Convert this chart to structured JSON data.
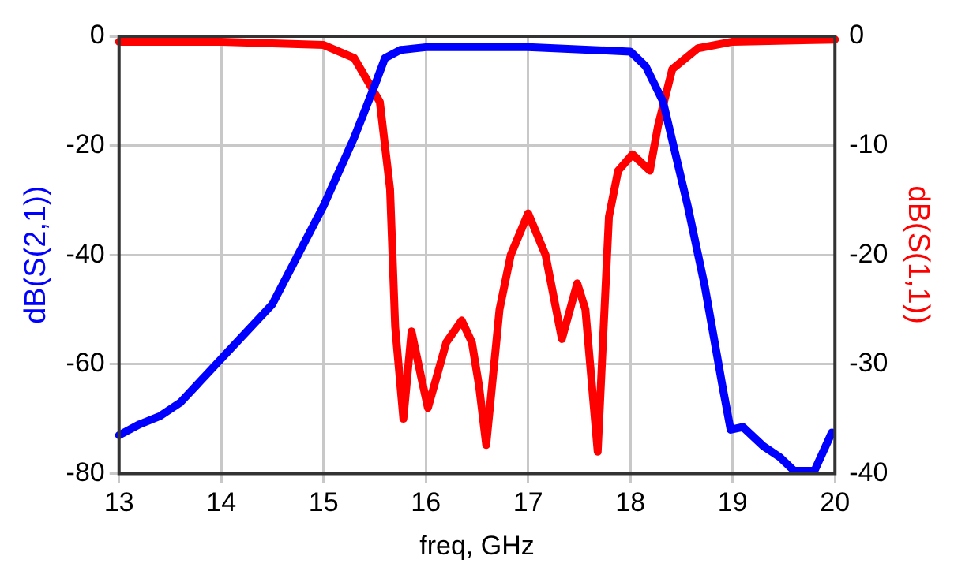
{
  "chart_data": {
    "type": "line",
    "xlabel": "freq, GHz",
    "ylabel": "dB(S(2,1))",
    "y2label": "dB(S(1,1))",
    "xlim": [
      13,
      20
    ],
    "xticks": [
      13,
      14,
      15,
      16,
      17,
      18,
      19,
      20
    ],
    "ylim": [
      -80,
      0
    ],
    "yticks": [
      -80,
      -60,
      -40,
      -20,
      0
    ],
    "y2lim": [
      -40,
      0
    ],
    "y2ticks": [
      -40,
      -30,
      -20,
      -10,
      0
    ],
    "grid": true,
    "legend": false,
    "marker": "none",
    "line_style": "solid",
    "series": [
      {
        "color": "#0000ff",
        "axis": "y",
        "x": [
          13,
          13.2,
          13.4,
          13.6,
          14,
          14.5,
          15,
          15.3,
          15.5,
          15.6,
          15.75,
          16,
          17,
          18,
          18.15,
          18.32,
          18.56,
          18.73,
          18.9,
          18.98,
          19.1,
          19.3,
          19.46,
          19.6,
          19.8,
          19.97
        ],
        "values": [
          -73,
          -71,
          -69.5,
          -67,
          -59,
          -49,
          -31,
          -18.5,
          -9,
          -4,
          -2.5,
          -2,
          -2,
          -2.8,
          -5.5,
          -12,
          -31,
          -46,
          -64,
          -72,
          -71.5,
          -75,
          -77,
          -79.5,
          -79.5,
          -72.5
        ]
      },
      {
        "color": "#ff0000",
        "axis": "y2",
        "x": [
          13,
          14,
          15,
          15.3,
          15.55,
          15.65,
          15.7,
          15.78,
          15.86,
          15.95,
          16.02,
          16.2,
          16.35,
          16.45,
          16.52,
          16.59,
          16.72,
          16.83,
          17,
          17.17,
          17.33,
          17.48,
          17.56,
          17.68,
          17.79,
          17.88,
          18.02,
          18.19,
          18.27,
          18.41,
          18.66,
          19,
          20
        ],
        "values": [
          -0.5,
          -0.5,
          -0.8,
          -2,
          -6,
          -14,
          -26.6,
          -35,
          -27,
          -31,
          -34,
          -28,
          -26,
          -28,
          -32,
          -37.4,
          -25,
          -20,
          -16.2,
          -20,
          -27.7,
          -22.6,
          -25,
          -38,
          -16.5,
          -12.3,
          -10.8,
          -12.3,
          -8.2,
          -3,
          -1.1,
          -0.5,
          -0.3
        ]
      }
    ]
  }
}
